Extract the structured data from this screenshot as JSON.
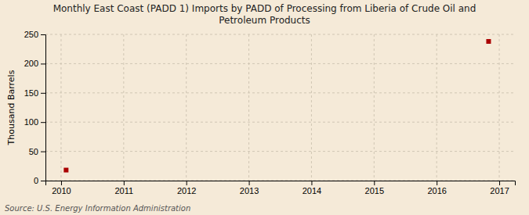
{
  "chart_data": {
    "type": "scatter",
    "title": "Monthly East Coast (PADD 1) Imports by PADD of Processing from Liberia of Crude Oil and\nPetroleum Products",
    "ylabel": "Thousand Barrels",
    "source": "Source: U.S. Energy Information Administration",
    "x": [
      2010.08,
      2016.83
    ],
    "values": [
      18,
      238
    ],
    "color": "#aa0000",
    "marker": "square",
    "xlim": [
      2009.75,
      2017.25
    ],
    "ylim": [
      0,
      250
    ],
    "xticks": [
      2010,
      2011,
      2012,
      2013,
      2014,
      2015,
      2016,
      2017
    ],
    "yticks": [
      0,
      50,
      100,
      150,
      200,
      250
    ],
    "grid": true
  }
}
